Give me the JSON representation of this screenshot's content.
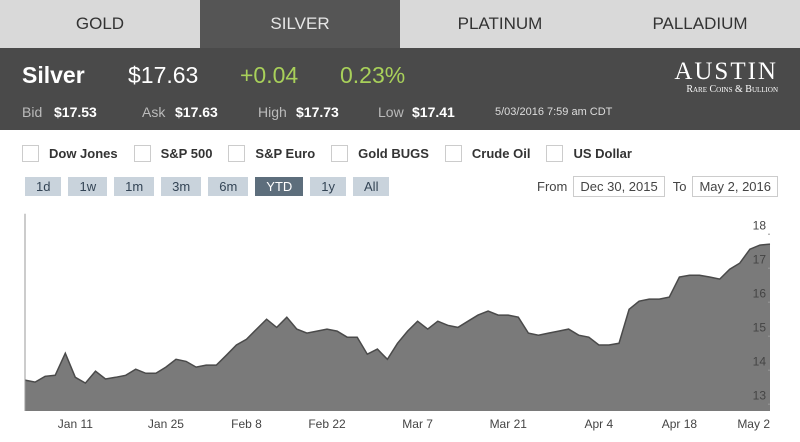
{
  "tabs": [
    "GOLD",
    "SILVER",
    "PLATINUM",
    "PALLADIUM"
  ],
  "active_tab": 1,
  "quote": {
    "name": "Silver",
    "price": "$17.63",
    "change": "+0.04",
    "change_pct": "0.23%",
    "bid_label": "Bid",
    "bid": "$17.53",
    "ask_label": "Ask",
    "ask": "$17.63",
    "high_label": "High",
    "high": "$17.73",
    "low_label": "Low",
    "low": "$17.41",
    "timestamp": "5/03/2016 7:59 am CDT"
  },
  "logo": {
    "title": "AUSTIN",
    "subtitle": "Rare Coins & Bullion"
  },
  "compare": [
    "Dow Jones",
    "S&P 500",
    "S&P Euro",
    "Gold BUGS",
    "Crude Oil",
    "US Dollar"
  ],
  "ranges": [
    "1d",
    "1w",
    "1m",
    "3m",
    "6m",
    "YTD",
    "1y",
    "All"
  ],
  "active_range": 5,
  "from_label": "From",
  "from": "Dec 30, 2015",
  "to_label": "To",
  "to": "May 2, 2016",
  "chart_data": {
    "type": "area",
    "color": "#7a7a7a",
    "line_color": "#4a4a4a",
    "categories": [
      null,
      null,
      null,
      null,
      null,
      "Jan 11",
      null,
      null,
      null,
      null,
      null,
      null,
      null,
      null,
      "Jan 25",
      null,
      null,
      null,
      null,
      null,
      null,
      null,
      "Feb 8",
      null,
      null,
      null,
      null,
      null,
      null,
      null,
      "Feb 22",
      null,
      null,
      null,
      null,
      null,
      null,
      null,
      null,
      "Mar 7",
      null,
      null,
      null,
      null,
      null,
      null,
      null,
      null,
      "Mar 21",
      null,
      null,
      null,
      null,
      null,
      null,
      null,
      null,
      "Apr 4",
      null,
      null,
      null,
      null,
      null,
      null,
      null,
      "Apr 18",
      null,
      null,
      null,
      null,
      null,
      null,
      null,
      null,
      "May 2"
    ],
    "values": [
      13.71,
      13.65,
      13.82,
      13.85,
      14.5,
      13.79,
      13.62,
      13.97,
      13.74,
      13.79,
      13.85,
      14.03,
      13.91,
      13.91,
      14.09,
      14.32,
      14.26,
      14.09,
      14.15,
      14.15,
      14.44,
      14.74,
      14.91,
      15.21,
      15.5,
      15.26,
      15.56,
      15.21,
      15.09,
      15.15,
      15.21,
      15.15,
      14.97,
      14.97,
      14.47,
      14.62,
      14.32,
      14.79,
      15.15,
      15.44,
      15.21,
      15.44,
      15.32,
      15.26,
      15.44,
      15.62,
      15.74,
      15.62,
      15.62,
      15.56,
      15.09,
      15.03,
      15.09,
      15.15,
      15.21,
      15.03,
      14.97,
      14.74,
      14.74,
      14.79,
      15.79,
      16.03,
      16.09,
      16.09,
      16.15,
      16.74,
      16.79,
      16.79,
      16.74,
      16.68,
      16.97,
      17.15,
      17.56,
      17.68,
      17.71
    ],
    "ylim": [
      12.8,
      18.6
    ],
    "yticks": [
      13,
      14,
      15,
      16,
      17,
      18
    ]
  }
}
